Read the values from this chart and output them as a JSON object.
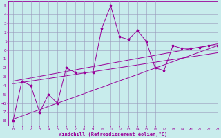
{
  "x": [
    0,
    1,
    2,
    3,
    4,
    5,
    6,
    7,
    8,
    9,
    10,
    11,
    12,
    13,
    14,
    15,
    16,
    17,
    18,
    19,
    20,
    21,
    22,
    23
  ],
  "y_data": [
    -8,
    -3.5,
    -4.0,
    -7.0,
    -5.0,
    -6.0,
    -2.0,
    -2.5,
    -2.5,
    -2.5,
    2.5,
    5.0,
    1.5,
    1.2,
    2.2,
    1.0,
    -2.0,
    -2.3,
    0.5,
    0.2,
    0.2,
    0.3,
    0.5,
    0.5
  ],
  "line1_x0": 0,
  "line1_y0": -3.5,
  "line1_x1": 23,
  "line1_y1": 0.7,
  "line2_x0": 0,
  "line2_y0": -3.8,
  "line2_x1": 23,
  "line2_y1": -0.3,
  "line3_x0": 0,
  "line3_y0": -7.8,
  "line3_x1": 23,
  "line3_y1": 0.5,
  "color": "#990099",
  "bg_color": "#c8ecec",
  "grid_color": "#9999bb",
  "xlabel": "Windchill (Refroidissement éolien,°C)",
  "xlim": [
    -0.5,
    23
  ],
  "ylim": [
    -8.5,
    5.5
  ],
  "yticks": [
    -8,
    -7,
    -6,
    -5,
    -4,
    -3,
    -2,
    -1,
    0,
    1,
    2,
    3,
    4,
    5
  ],
  "xticks": [
    0,
    1,
    2,
    3,
    4,
    5,
    6,
    7,
    8,
    9,
    10,
    11,
    12,
    13,
    14,
    15,
    16,
    17,
    18,
    19,
    20,
    21,
    22,
    23
  ]
}
